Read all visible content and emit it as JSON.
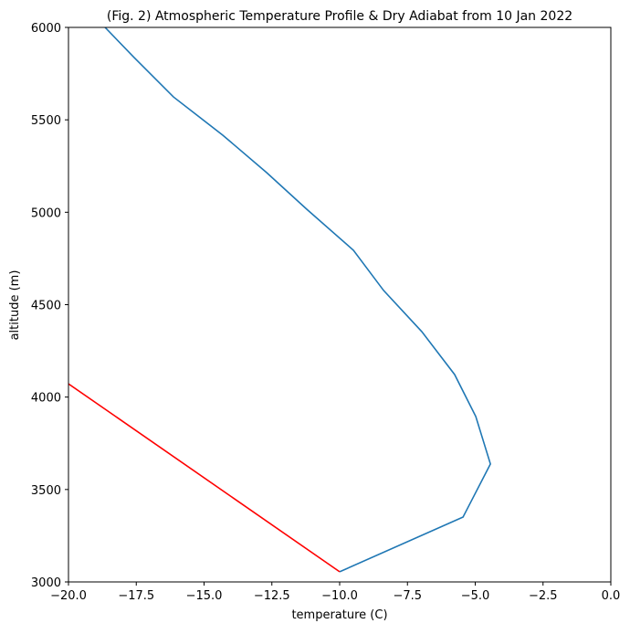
{
  "chart_data": {
    "type": "line",
    "title": "(Fig. 2) Atmospheric Temperature Profile & Dry Adiabat from 10 Jan 2022",
    "x_label": "temperature (C)",
    "y_label": "altitude (m)",
    "series": [
      {
        "color": "#1f77b4",
        "x": [
          -10.0,
          -5.45,
          -4.44,
          -4.98,
          -5.76,
          -6.97,
          -8.38,
          -9.49,
          -11.21,
          -12.69,
          -14.31,
          -16.13,
          -17.58,
          -18.65
        ],
        "values": [
          3055,
          3351,
          3638,
          3895,
          4122,
          4354,
          4577,
          4794,
          5016,
          5214,
          5417,
          5624,
          5837,
          6000
        ]
      },
      {
        "color": "#ff0000",
        "x": [
          -10.0,
          -20.0
        ],
        "values": [
          3055,
          4072
        ]
      }
    ],
    "xlim": [
      -20,
      0
    ],
    "ylim": [
      3000,
      6000
    ],
    "xticks": [
      {
        "value": -20,
        "label": "−20.0"
      },
      {
        "value": -17.5,
        "label": "−17.5"
      },
      {
        "value": -15,
        "label": "−15.0"
      },
      {
        "value": -12.5,
        "label": "−12.5"
      },
      {
        "value": -10,
        "label": "−10.0"
      },
      {
        "value": -7.5,
        "label": "−7.5"
      },
      {
        "value": -5,
        "label": "−5.0"
      },
      {
        "value": -2.5,
        "label": "−2.5"
      },
      {
        "value": 0,
        "label": "0.0"
      }
    ],
    "yticks": [
      3000,
      3500,
      4000,
      4500,
      5000,
      5500,
      6000
    ]
  }
}
